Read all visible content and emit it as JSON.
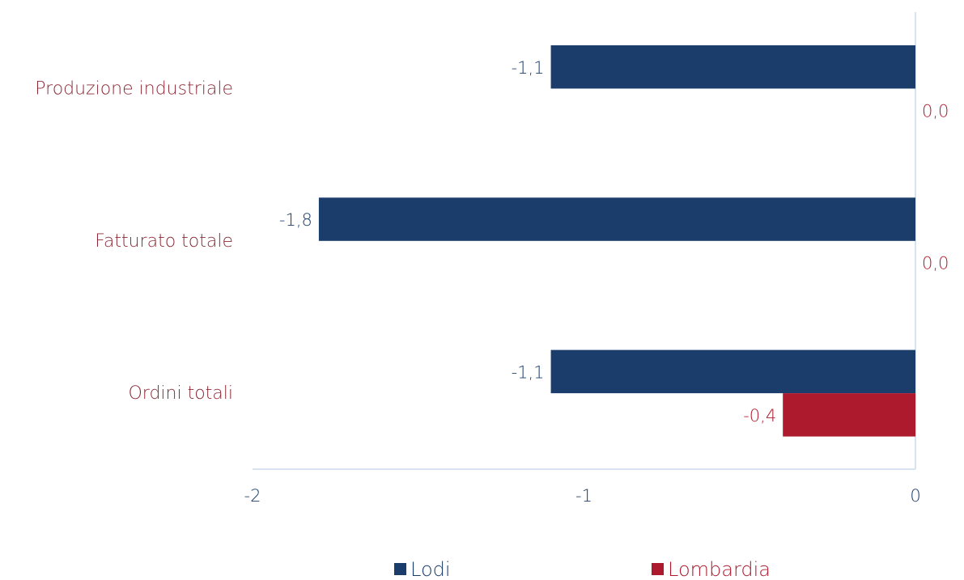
{
  "chart_data": {
    "type": "bar",
    "orientation": "horizontal",
    "categories": [
      "Produzione industriale",
      "Fatturato totale",
      "Ordini totali"
    ],
    "series": [
      {
        "name": "Lodi",
        "color": "#1a3d6b",
        "values": [
          -1.1,
          -1.8,
          -1.1
        ],
        "labels": [
          "-1,1",
          "-1,8",
          "-1,1"
        ]
      },
      {
        "name": "Lombardia",
        "color": "#ad1a2e",
        "values": [
          0.0,
          0.0,
          -0.4
        ],
        "labels": [
          "0,0",
          "0,0",
          "-0,4"
        ]
      }
    ],
    "xlim": [
      -2,
      0
    ],
    "xticks": [
      -2,
      -1,
      0
    ],
    "xtick_labels": [
      "-2",
      "-1",
      "0"
    ],
    "legend_position": "bottom",
    "grid": false,
    "colors": {
      "category_text": "#8b2a36",
      "axis_line": "#d6e2f0",
      "tick_text": "#1a3d6b"
    }
  }
}
